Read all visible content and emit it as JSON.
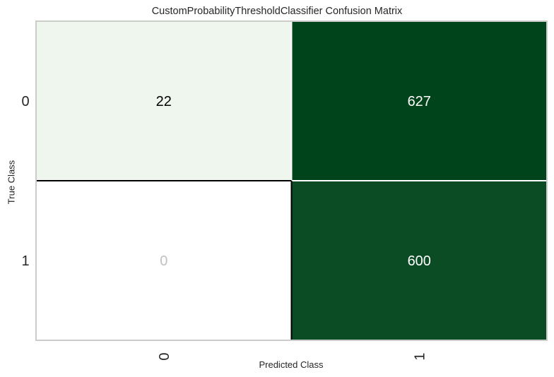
{
  "chart_data": {
    "type": "heatmap",
    "title": "CustomProbabilityThresholdClassifier Confusion Matrix",
    "xlabel": "Predicted Class",
    "ylabel": "True Class",
    "x_tick_labels": [
      "0",
      "1"
    ],
    "y_tick_labels": [
      "0",
      "1"
    ],
    "matrix": [
      [
        22,
        627
      ],
      [
        0,
        600
      ]
    ],
    "cell_labels": [
      [
        "22",
        "627"
      ],
      [
        "0",
        "600"
      ]
    ],
    "colormap": "Greens",
    "colors": {
      "low": "#f7fcf5",
      "high": "#00441b",
      "zero_cell": "#ffffff",
      "text_dark": "#000000",
      "text_light": "#ffffff",
      "text_zero": "#c0c0c0",
      "frame": "#cccccc"
    },
    "grid": false,
    "legend": "none"
  }
}
